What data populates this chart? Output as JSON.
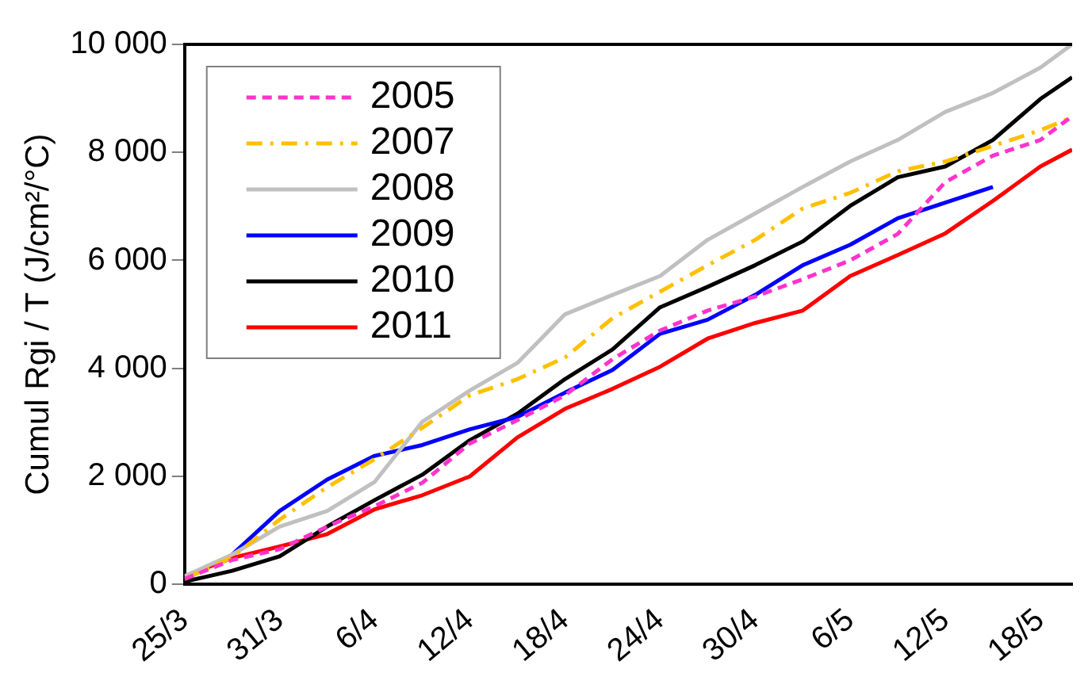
{
  "chart_data": {
    "type": "line",
    "ylabel": "Cumul Rgi / T (J/cm²/°C)",
    "x": [
      "--03-25",
      "--03-28",
      "--03-31",
      "--04-03",
      "--04-06",
      "--04-09",
      "--04-12",
      "--04-15",
      "--04-18",
      "--04-21",
      "--04-24",
      "--04-27",
      "--04-30",
      "--05-03",
      "--05-06",
      "--05-09",
      "--05-12",
      "--05-15",
      "--05-18",
      "--05-20"
    ],
    "xlim": [
      "--03-25",
      "--05-20"
    ],
    "xticks": [
      {
        "value": "--03-25",
        "label": "25/3"
      },
      {
        "value": "--03-31",
        "label": "31/3"
      },
      {
        "value": "--04-06",
        "label": "6/4"
      },
      {
        "value": "--04-12",
        "label": "12/4"
      },
      {
        "value": "--04-18",
        "label": "18/4"
      },
      {
        "value": "--04-24",
        "label": "24/4"
      },
      {
        "value": "--04-30",
        "label": "30/4"
      },
      {
        "value": "--05-06",
        "label": "6/5"
      },
      {
        "value": "--05-12",
        "label": "12/5"
      },
      {
        "value": "--05-18",
        "label": "18/5"
      }
    ],
    "ylim": [
      0,
      10000
    ],
    "yticks": [
      0,
      {
        "value": 2000,
        "label": "2 000"
      },
      {
        "value": 4000,
        "label": "4 000"
      },
      {
        "value": 6000,
        "label": "6 000"
      },
      {
        "value": 8000,
        "label": "8 000"
      },
      {
        "value": 10000,
        "label": "10 000"
      }
    ],
    "grid": false,
    "legend": "top left",
    "marker": "none",
    "series": [
      {
        "name": "2005",
        "color": "#ff33cc",
        "line_style": "dashed",
        "values": [
          100,
          450,
          650,
          1070,
          1450,
          1880,
          2610,
          3040,
          3500,
          4170,
          4700,
          5070,
          5330,
          5650,
          6000,
          6490,
          7450,
          7940,
          8230,
          8670
        ]
      },
      {
        "name": "2007",
        "color": "#ffc000",
        "line_style": "dashdot",
        "values": [
          100,
          500,
          1200,
          1800,
          2320,
          2900,
          3500,
          3800,
          4200,
          4930,
          5420,
          5910,
          6380,
          6960,
          7250,
          7650,
          7830,
          8120,
          8410,
          8650
        ]
      },
      {
        "name": "2008",
        "color": "#c0c0c0",
        "values": [
          150,
          550,
          1070,
          1360,
          1900,
          3010,
          3590,
          4100,
          5000,
          5360,
          5710,
          6380,
          6870,
          7360,
          7830,
          8230,
          8750,
          9100,
          9570,
          10000
        ]
      },
      {
        "name": "2009",
        "color": "#0000ff",
        "values": [
          null,
          550,
          1360,
          1940,
          2380,
          2580,
          2870,
          3100,
          3550,
          3970,
          4640,
          4900,
          5360,
          5910,
          6290,
          6780,
          7070,
          7360,
          null,
          null
        ]
      },
      {
        "name": "2010",
        "color": "#000000",
        "values": [
          50,
          250,
          520,
          1070,
          1560,
          2030,
          2670,
          3160,
          3800,
          4350,
          5130,
          5510,
          5910,
          6350,
          7010,
          7540,
          7740,
          8230,
          8990,
          9390
        ]
      },
      {
        "name": "2011",
        "color": "#ff0000",
        "values": [
          150,
          490,
          700,
          930,
          1390,
          1650,
          2000,
          2720,
          3250,
          3620,
          4030,
          4550,
          4840,
          5070,
          5710,
          6100,
          6500,
          7100,
          7740,
          8050
        ]
      }
    ]
  }
}
